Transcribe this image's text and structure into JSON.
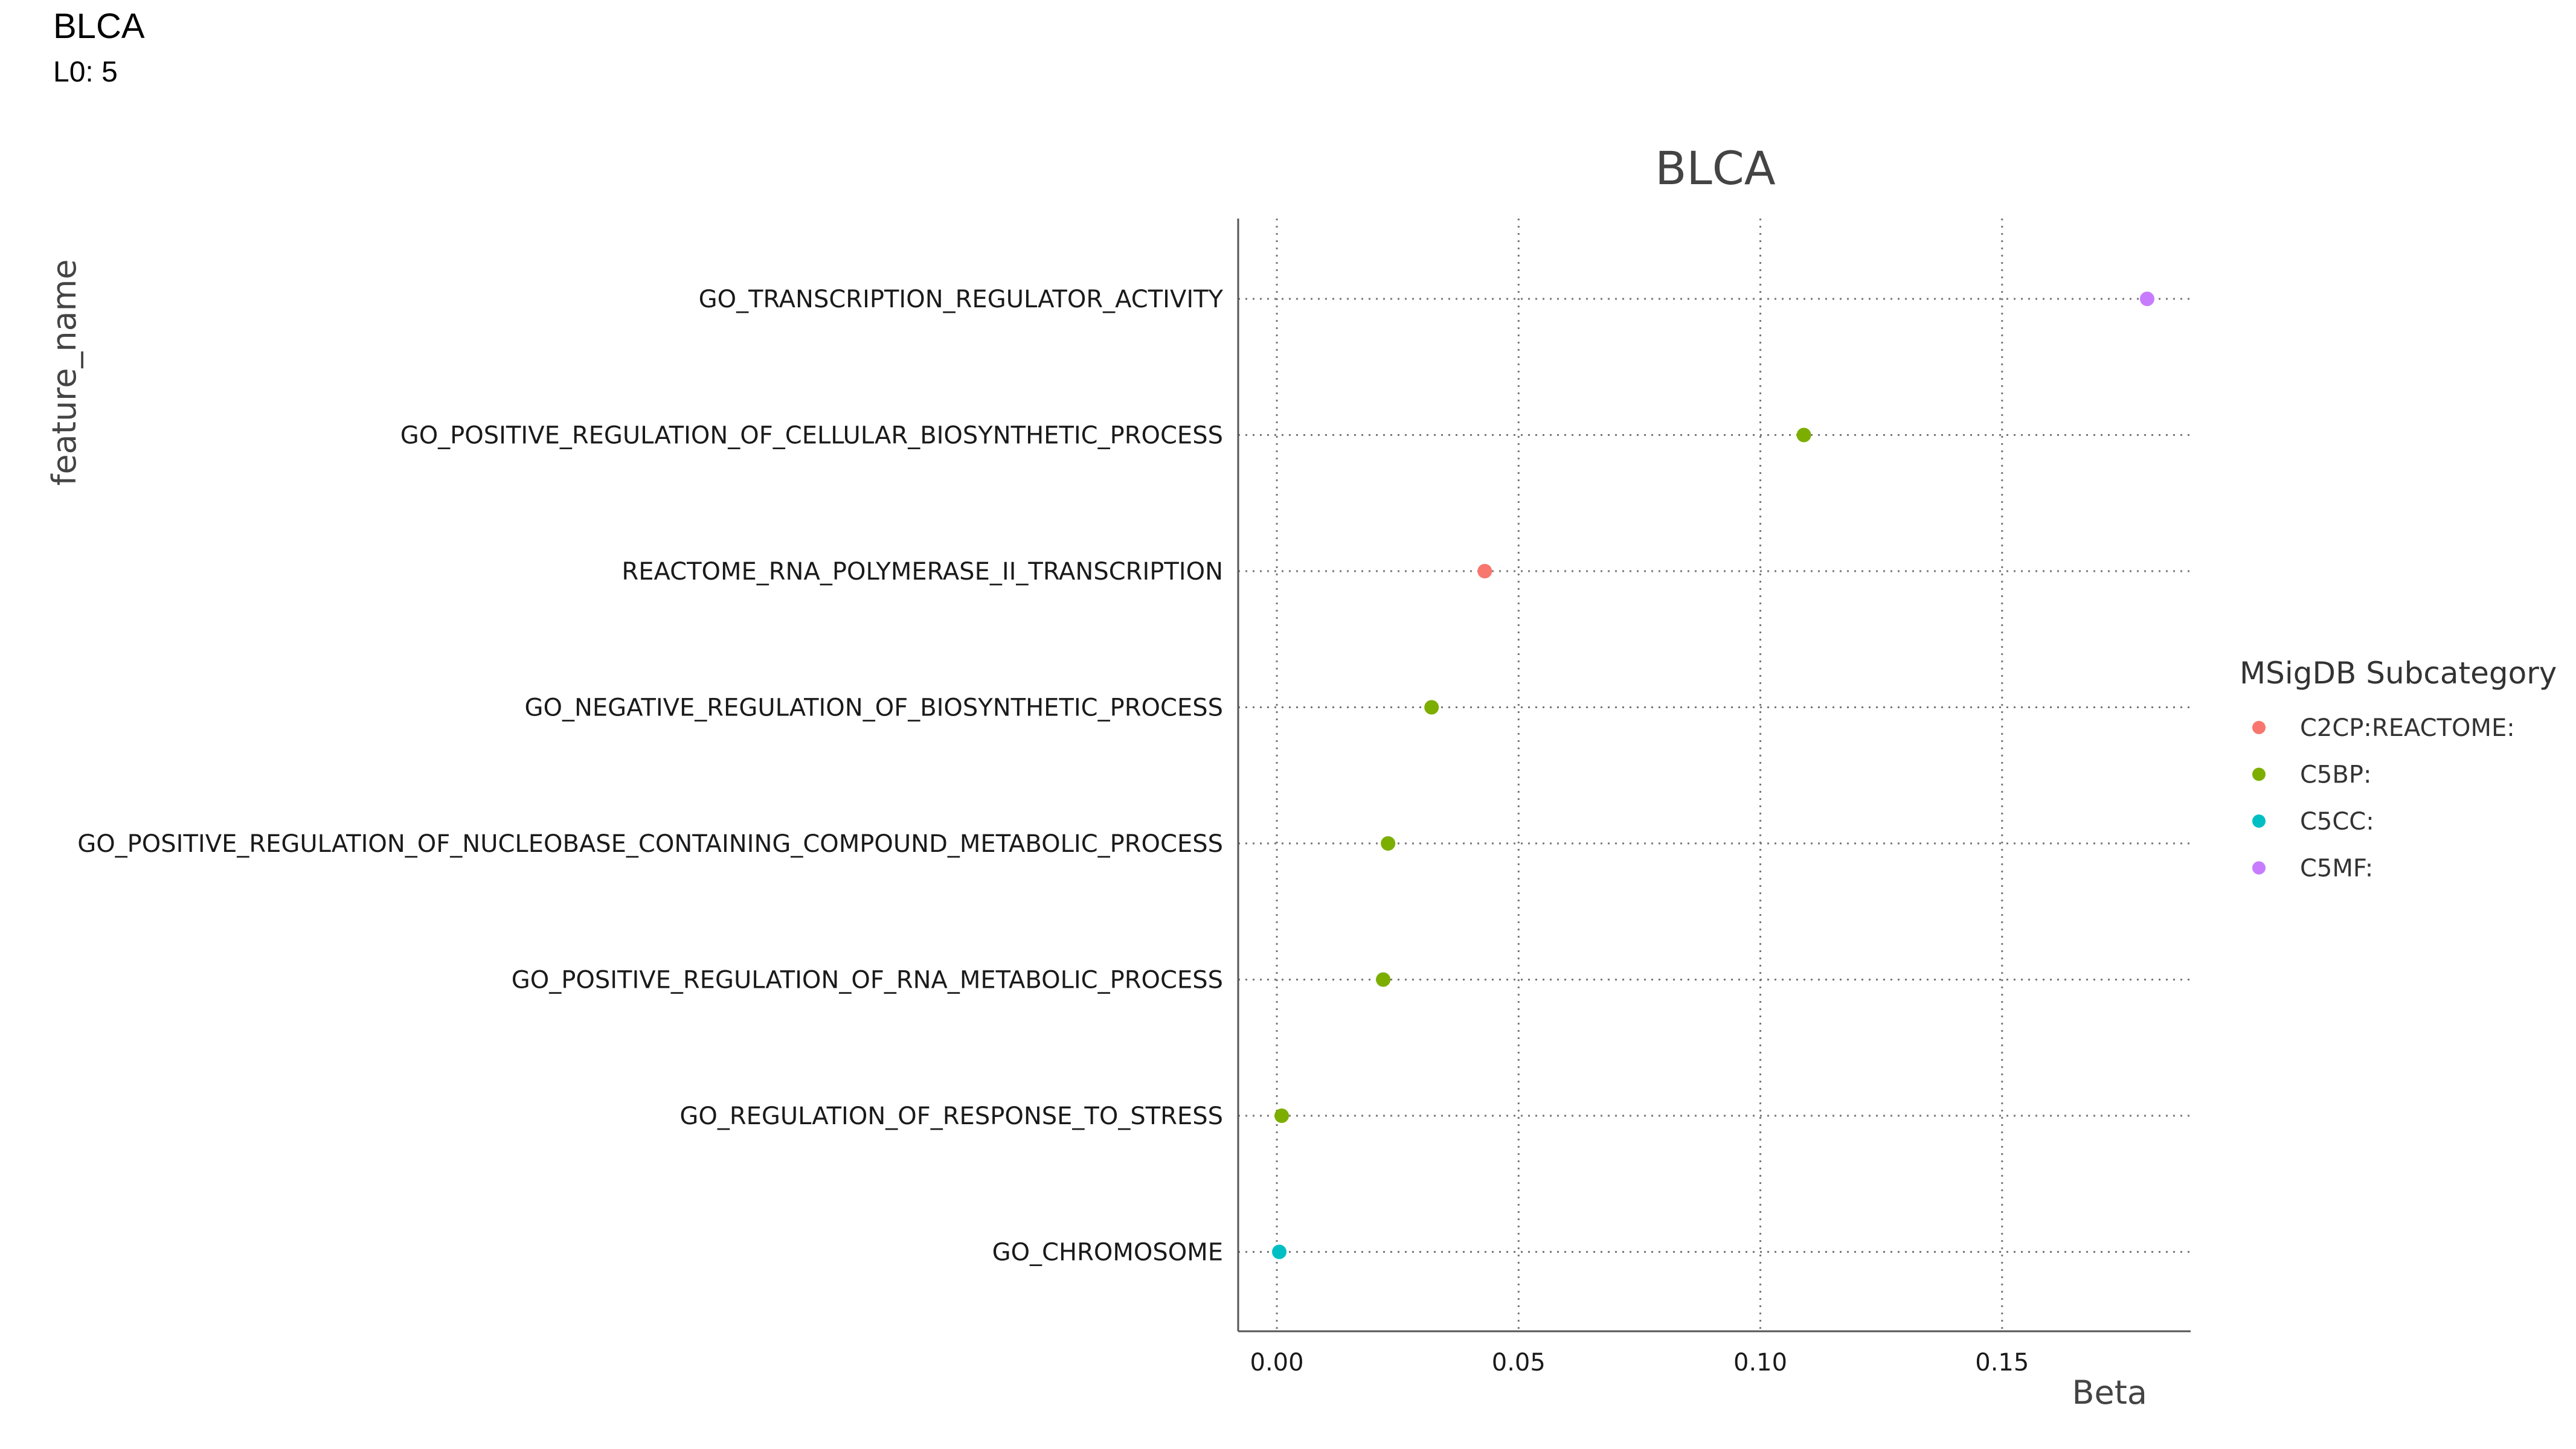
{
  "header": {
    "title": "BLCA",
    "subtitle": "L0: 5"
  },
  "chart_data": {
    "type": "scatter",
    "title": "BLCA",
    "xlabel": "Beta",
    "ylabel": "feature_name",
    "xlim": [
      -0.008,
      0.189
    ],
    "x_ticks": [
      "0.00",
      "0.05",
      "0.10",
      "0.15"
    ],
    "x_tick_values": [
      0.0,
      0.05,
      0.1,
      0.15
    ],
    "grid": true,
    "legend": {
      "title": "MSigDB Subcategory",
      "placement": "right",
      "entries": [
        {
          "label": "C2CP:REACTOME:",
          "color": "#F8766D"
        },
        {
          "label": "C5BP:",
          "color": "#7CAE00"
        },
        {
          "label": "C5CC:",
          "color": "#00BFC4"
        },
        {
          "label": "C5MF:",
          "color": "#C77CFF"
        }
      ]
    },
    "categories": [
      "GO_TRANSCRIPTION_REGULATOR_ACTIVITY",
      "GO_POSITIVE_REGULATION_OF_CELLULAR_BIOSYNTHETIC_PROCESS",
      "REACTOME_RNA_POLYMERASE_II_TRANSCRIPTION",
      "GO_NEGATIVE_REGULATION_OF_BIOSYNTHETIC_PROCESS",
      "GO_POSITIVE_REGULATION_OF_NUCLEOBASE_CONTAINING_COMPOUND_METABOLIC_PROCESS",
      "GO_POSITIVE_REGULATION_OF_RNA_METABOLIC_PROCESS",
      "GO_REGULATION_OF_RESPONSE_TO_STRESS",
      "GO_CHROMOSOME"
    ],
    "points": [
      {
        "feature": "GO_TRANSCRIPTION_REGULATOR_ACTIVITY",
        "x": 0.18,
        "subcategory": "C5MF:"
      },
      {
        "feature": "GO_POSITIVE_REGULATION_OF_CELLULAR_BIOSYNTHETIC_PROCESS",
        "x": 0.109,
        "subcategory": "C5BP:"
      },
      {
        "feature": "REACTOME_RNA_POLYMERASE_II_TRANSCRIPTION",
        "x": 0.043,
        "subcategory": "C2CP:REACTOME:"
      },
      {
        "feature": "GO_NEGATIVE_REGULATION_OF_BIOSYNTHETIC_PROCESS",
        "x": 0.032,
        "subcategory": "C5BP:"
      },
      {
        "feature": "GO_POSITIVE_REGULATION_OF_NUCLEOBASE_CONTAINING_COMPOUND_METABOLIC_PROCESS",
        "x": 0.023,
        "subcategory": "C5BP:"
      },
      {
        "feature": "GO_POSITIVE_REGULATION_OF_RNA_METABOLIC_PROCESS",
        "x": 0.022,
        "subcategory": "C5BP:"
      },
      {
        "feature": "GO_REGULATION_OF_RESPONSE_TO_STRESS",
        "x": 0.001,
        "subcategory": "C5BP:"
      },
      {
        "feature": "GO_CHROMOSOME",
        "x": 0.0005,
        "subcategory": "C5CC:"
      }
    ]
  }
}
